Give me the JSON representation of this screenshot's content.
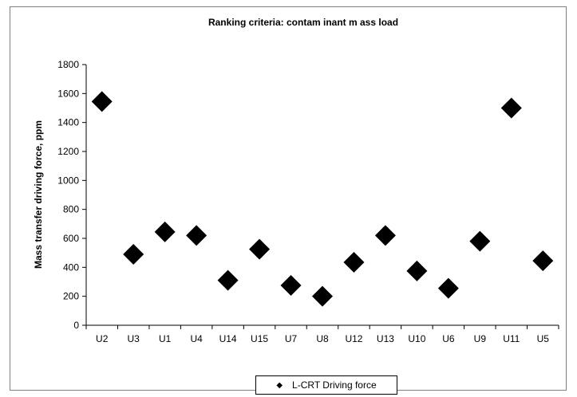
{
  "chart_data": {
    "type": "scatter",
    "title": "Ranking criteria: contam inant m ass load",
    "xlabel": "",
    "ylabel": "Mass transfer driving force, ppm",
    "categories": [
      "U2",
      "U3",
      "U1",
      "U4",
      "U14",
      "U15",
      "U7",
      "U8",
      "U12",
      "U13",
      "U10",
      "U6",
      "U9",
      "U11",
      "U5"
    ],
    "series": [
      {
        "name": "L-CRT Driving force",
        "values": [
          1545,
          490,
          645,
          620,
          310,
          525,
          275,
          200,
          435,
          620,
          375,
          255,
          580,
          1500,
          445
        ]
      }
    ],
    "ylim": [
      0,
      1800
    ],
    "yticks": [
      0,
      200,
      400,
      600,
      800,
      1000,
      1200,
      1400,
      1600,
      1800
    ],
    "grid": false,
    "legend_position": "bottom-center",
    "marker": "diamond",
    "marker_color": "#000000"
  }
}
